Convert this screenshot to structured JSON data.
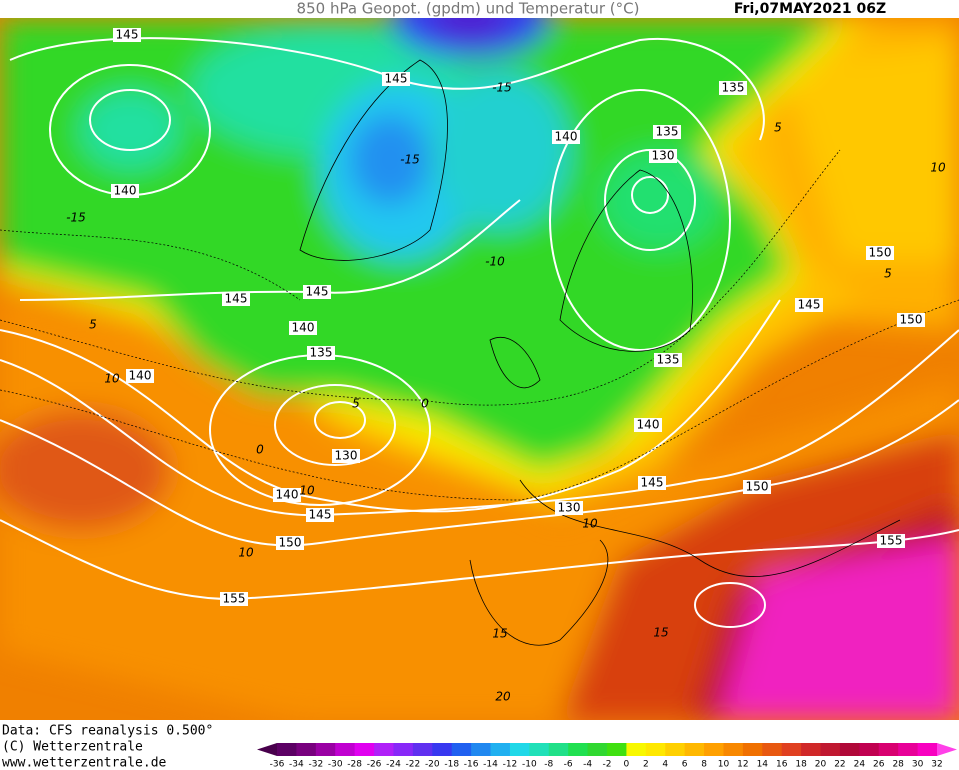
{
  "header": {
    "title": "850 hPa Geopot. (gpdm) und Temperatur (°C)",
    "date": "Fri,07MAY2021 06Z"
  },
  "footer": {
    "source": "Data: CFS reanalysis 0.500°",
    "copyright": "(C) Wetterzentrale",
    "url": "www.wetterzentrale.de"
  },
  "map": {
    "geopotential_labels": [
      145,
      145,
      135,
      140,
      135,
      130,
      140,
      150,
      145,
      145,
      145,
      150,
      140,
      135,
      135,
      140,
      130,
      140,
      145,
      150,
      140,
      145,
      130,
      150,
      155,
      155
    ],
    "temperature_labels": [
      -15,
      -15,
      -10,
      5,
      10,
      5,
      -15,
      5,
      10,
      5,
      0,
      0,
      10,
      10,
      10,
      15,
      15,
      20
    ]
  },
  "colorbar": {
    "labels": [
      -36,
      -34,
      -32,
      -30,
      -28,
      -26,
      -24,
      -22,
      -20,
      -18,
      -16,
      -14,
      -12,
      -10,
      -8,
      -6,
      -4,
      -2,
      0,
      2,
      4,
      6,
      8,
      10,
      12,
      14,
      16,
      18,
      20,
      22,
      24,
      26,
      28,
      30,
      32
    ],
    "colors": [
      "#48004c",
      "#5c0064",
      "#78007e",
      "#9a00a4",
      "#c000d0",
      "#e000f0",
      "#b020f8",
      "#8828f8",
      "#6030f0",
      "#3838f0",
      "#2060f0",
      "#2088f0",
      "#20b0f0",
      "#20d8e8",
      "#20e0b8",
      "#20e088",
      "#20e050",
      "#30d830",
      "#40e010",
      "#f8f800",
      "#ffe800",
      "#ffd000",
      "#ffb800",
      "#ffa000",
      "#f88800",
      "#f07000",
      "#e85810",
      "#e04020",
      "#d02828",
      "#c01830",
      "#b00838",
      "#c00050",
      "#d80070",
      "#e80098",
      "#f800c0",
      "#ff40e8"
    ]
  }
}
